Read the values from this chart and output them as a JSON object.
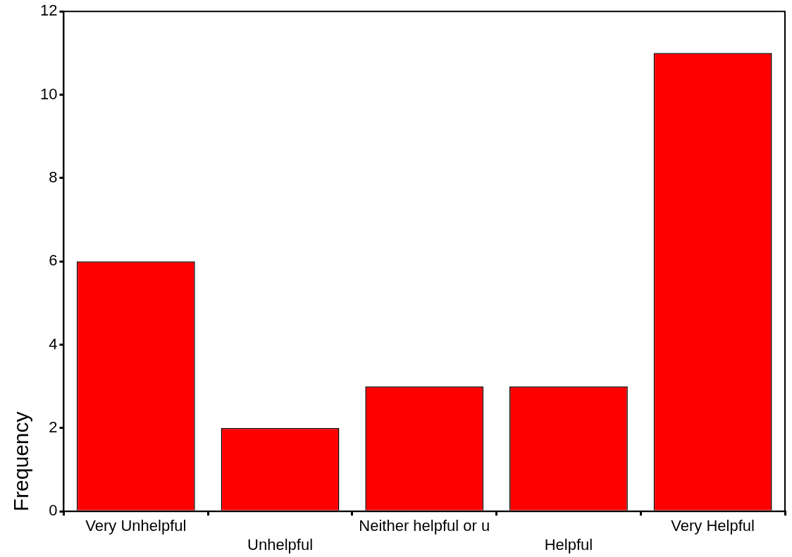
{
  "chart_data": {
    "type": "bar",
    "categories": [
      "Very Unhelpful",
      "Unhelpful",
      "Neither helpful or u",
      "Helpful",
      "Very Helpful"
    ],
    "values": [
      6,
      2,
      3,
      3,
      11
    ],
    "color": "#ff0000",
    "ylabel": "Frequency",
    "ylim": [
      0,
      12
    ],
    "yticks": [
      0,
      2,
      4,
      6,
      8,
      10,
      12
    ],
    "legend": false
  }
}
